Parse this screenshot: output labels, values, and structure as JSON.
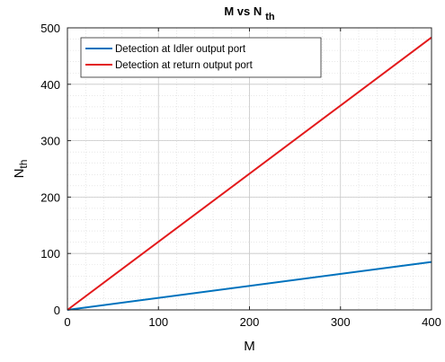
{
  "chart_data": {
    "type": "line",
    "title": {
      "main": "M vs N",
      "sub": "th"
    },
    "xlabel": "M",
    "ylabel": {
      "main": "N",
      "sub": "th"
    },
    "xlim": [
      0,
      400
    ],
    "ylim": [
      0,
      500
    ],
    "xticks": [
      0,
      100,
      200,
      300,
      400
    ],
    "yticks": [
      0,
      100,
      200,
      300,
      400,
      500
    ],
    "grid": "on",
    "minor_grid": "on",
    "legend_position": "top-left",
    "series": [
      {
        "name": "Detection at Idler output port",
        "color": "#0072BD",
        "x": [
          0,
          400
        ],
        "y": [
          0,
          85
        ]
      },
      {
        "name": "Detection at return output port",
        "color": "#E31A1C",
        "x": [
          0,
          400
        ],
        "y": [
          0,
          483
        ]
      }
    ]
  }
}
